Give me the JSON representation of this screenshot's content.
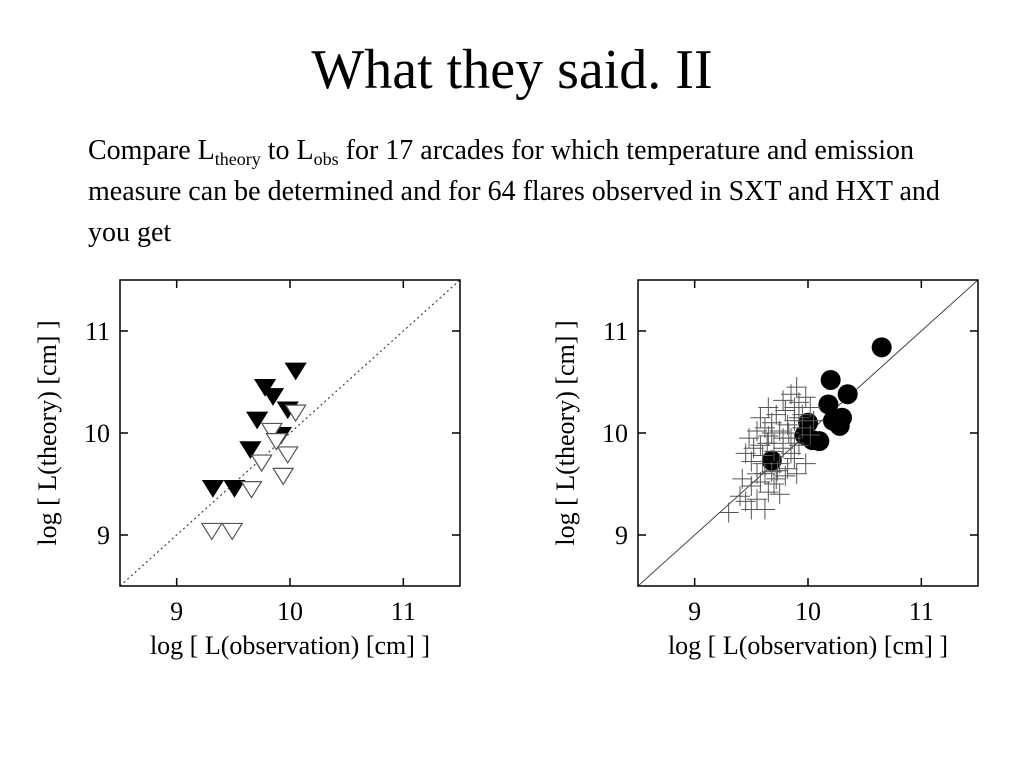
{
  "slide": {
    "title": "What they said. II",
    "body": {
      "t1": "Compare L",
      "sub1": "theory",
      "t2": " to L",
      "sub2": "obs",
      "t3": " for 17 arcades for which temperature and emission measure can be determined and for 64 flares observed in SXT and HXT and you get"
    }
  },
  "chart_data": [
    {
      "type": "scatter",
      "xlabel": "log [ L(observation) [cm] ]",
      "ylabel": "log [ L(theory) [cm] ]",
      "xlim": [
        8.5,
        11.5
      ],
      "ylim": [
        8.5,
        11.5
      ],
      "xticks": [
        9,
        10,
        11
      ],
      "yticks": [
        9,
        10,
        11
      ],
      "reference_line": {
        "slope": 1,
        "style": "dotted"
      },
      "grid": false,
      "series": [
        {
          "marker": "filled-triangle-down",
          "color": "#000000",
          "points": [
            [
              9.32,
              9.46
            ],
            [
              9.51,
              9.46
            ],
            [
              9.65,
              9.84
            ],
            [
              9.71,
              10.13
            ],
            [
              9.78,
              10.45
            ],
            [
              9.85,
              10.36
            ],
            [
              9.92,
              9.98
            ],
            [
              9.98,
              10.23
            ],
            [
              10.05,
              10.61
            ]
          ]
        },
        {
          "marker": "open-triangle-down",
          "color": "#000000",
          "points": [
            [
              9.31,
              9.04
            ],
            [
              9.49,
              9.04
            ],
            [
              9.66,
              9.45
            ],
            [
              9.75,
              9.71
            ],
            [
              9.84,
              10.02
            ],
            [
              9.88,
              9.92
            ],
            [
              9.94,
              9.58
            ],
            [
              9.98,
              9.79
            ],
            [
              10.05,
              10.2
            ]
          ]
        }
      ]
    },
    {
      "type": "scatter",
      "xlabel": "log [ L(observation) [cm] ]",
      "ylabel": "log [ L(theory) [cm] ]",
      "xlim": [
        8.5,
        11.5
      ],
      "ylim": [
        8.5,
        11.5
      ],
      "xticks": [
        9,
        10,
        11
      ],
      "yticks": [
        9,
        10,
        11
      ],
      "reference_line": {
        "slope": 1,
        "style": "solid"
      },
      "grid": false,
      "series": [
        {
          "marker": "filled-circle",
          "color": "#000000",
          "points": [
            [
              9.68,
              9.73
            ],
            [
              9.97,
              9.98
            ],
            [
              10.0,
              10.1
            ],
            [
              10.04,
              9.93
            ],
            [
              10.1,
              9.92
            ],
            [
              10.18,
              10.28
            ],
            [
              10.2,
              10.52
            ],
            [
              10.22,
              10.12
            ],
            [
              10.28,
              10.07
            ],
            [
              10.3,
              10.15
            ],
            [
              10.35,
              10.38
            ],
            [
              10.65,
              10.84
            ]
          ]
        },
        {
          "marker": "plus",
          "color": "#555555",
          "points": [
            [
              9.3,
              9.22
            ],
            [
              9.45,
              9.33
            ],
            [
              9.62,
              9.25
            ],
            [
              9.5,
              9.48
            ],
            [
              9.55,
              9.6
            ],
            [
              9.42,
              9.55
            ],
            [
              9.68,
              9.62
            ],
            [
              9.72,
              9.55
            ],
            [
              9.5,
              9.72
            ],
            [
              9.6,
              9.78
            ],
            [
              9.75,
              9.7
            ],
            [
              9.82,
              9.65
            ],
            [
              9.88,
              9.75
            ],
            [
              9.58,
              9.88
            ],
            [
              9.48,
              9.95
            ],
            [
              9.65,
              9.97
            ],
            [
              9.7,
              9.9
            ],
            [
              9.78,
              9.85
            ],
            [
              9.85,
              9.95
            ],
            [
              9.92,
              9.88
            ],
            [
              9.55,
              10.02
            ],
            [
              9.62,
              10.05
            ],
            [
              9.68,
              10.1
            ],
            [
              9.75,
              10.02
            ],
            [
              9.82,
              10.08
            ],
            [
              9.88,
              10.12
            ],
            [
              9.95,
              10.05
            ],
            [
              9.72,
              10.18
            ],
            [
              9.8,
              10.22
            ],
            [
              9.88,
              10.25
            ],
            [
              9.78,
              10.32
            ],
            [
              9.85,
              10.38
            ],
            [
              9.92,
              10.3
            ],
            [
              9.65,
              10.25
            ],
            [
              9.58,
              10.15
            ],
            [
              9.95,
              10.18
            ],
            [
              10.02,
              10.25
            ],
            [
              10.05,
              10.12
            ],
            [
              9.9,
              9.6
            ],
            [
              9.98,
              9.7
            ],
            [
              9.6,
              9.7
            ],
            [
              9.52,
              9.85
            ],
            [
              9.45,
              9.8
            ],
            [
              9.7,
              9.5
            ],
            [
              9.8,
              9.58
            ],
            [
              9.65,
              9.42
            ],
            [
              9.55,
              9.35
            ],
            [
              9.4,
              9.38
            ],
            [
              9.9,
              10.45
            ],
            [
              9.98,
              10.35
            ],
            [
              9.75,
              9.4
            ],
            [
              9.5,
              9.25
            ],
            [
              10.02,
              9.98
            ],
            [
              9.62,
              9.6
            ],
            [
              9.85,
              9.8
            ],
            [
              9.7,
              9.82
            ],
            [
              9.58,
              9.52
            ],
            [
              9.92,
              10.15
            ],
            [
              9.68,
              10.0
            ],
            [
              9.78,
              9.95
            ],
            [
              9.83,
              10.0
            ],
            [
              9.73,
              9.63
            ],
            [
              9.88,
              9.9
            ],
            [
              9.64,
              9.9
            ]
          ]
        }
      ]
    }
  ]
}
